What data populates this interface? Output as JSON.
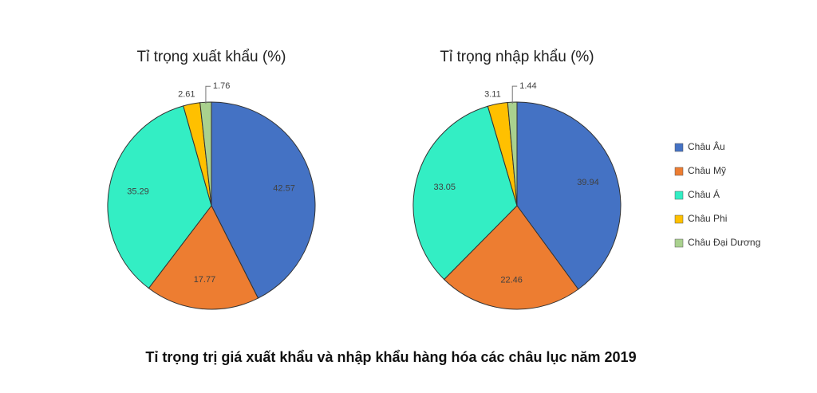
{
  "chart_data": [
    {
      "type": "pie",
      "title": "Tỉ trọng xuất khẩu (%)",
      "categories": [
        "Châu Âu",
        "Châu Mỹ",
        "Châu Á",
        "Châu Phi",
        "Châu Đại Dương"
      ],
      "values": [
        42.57,
        17.77,
        35.29,
        2.61,
        1.76
      ],
      "colors": [
        "#4472c4",
        "#ed7d31",
        "#33eec4",
        "#ffc000",
        "#a9d18e"
      ]
    },
    {
      "type": "pie",
      "title": "Tỉ trọng nhập khẩu (%)",
      "categories": [
        "Châu Âu",
        "Châu Mỹ",
        "Châu Á",
        "Châu Phi",
        "Châu Đại Dương"
      ],
      "values": [
        39.94,
        22.46,
        33.05,
        3.11,
        1.44
      ],
      "colors": [
        "#4472c4",
        "#ed7d31",
        "#33eec4",
        "#ffc000",
        "#a9d18e"
      ]
    }
  ],
  "caption": "Tỉ trọng trị giá xuất khẩu và nhập khẩu hàng hóa các châu lục năm 2019"
}
